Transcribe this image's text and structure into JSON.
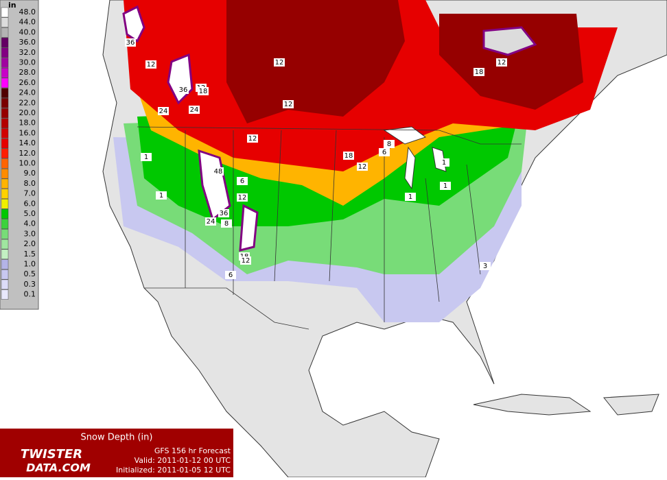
{
  "legend": {
    "unit": "in",
    "levels": [
      {
        "label": "48.0",
        "color": "#ffffff"
      },
      {
        "label": "44.0",
        "color": "#dcdcdc"
      },
      {
        "label": "40.0",
        "color": "#b4b4b4"
      },
      {
        "label": "36.0",
        "color": "#640064"
      },
      {
        "label": "32.0",
        "color": "#820082"
      },
      {
        "label": "30.0",
        "color": "#a000a0"
      },
      {
        "label": "28.0",
        "color": "#c800c8"
      },
      {
        "label": "26.0",
        "color": "#ff00ff"
      },
      {
        "label": "24.0",
        "color": "#500000"
      },
      {
        "label": "22.0",
        "color": "#7a0000"
      },
      {
        "label": "20.0",
        "color": "#960000"
      },
      {
        "label": "18.0",
        "color": "#b40000"
      },
      {
        "label": "16.0",
        "color": "#d20000"
      },
      {
        "label": "14.0",
        "color": "#e60000"
      },
      {
        "label": "12.0",
        "color": "#ff1e00"
      },
      {
        "label": "10.0",
        "color": "#ff6400"
      },
      {
        "label": "9.0",
        "color": "#ff8c00"
      },
      {
        "label": "8.0",
        "color": "#ffb400"
      },
      {
        "label": "7.0",
        "color": "#ffd200"
      },
      {
        "label": "6.0",
        "color": "#f0f000"
      },
      {
        "label": "5.0",
        "color": "#00c800"
      },
      {
        "label": "4.0",
        "color": "#3cd23c"
      },
      {
        "label": "3.0",
        "color": "#78dc78"
      },
      {
        "label": "2.0",
        "color": "#a0e6a0"
      },
      {
        "label": "1.5",
        "color": "#c3f0c3"
      },
      {
        "label": "1.0",
        "color": "#b4b4e6"
      },
      {
        "label": "0.5",
        "color": "#c8c8f0"
      },
      {
        "label": "0.3",
        "color": "#dcdcf8"
      },
      {
        "label": "0.1",
        "color": "#e8e8fc"
      }
    ]
  },
  "panel": {
    "title": "Snow Depth (in)",
    "logo_top": "TWISTER",
    "logo_bottom": "DATA.COM",
    "forecast": "GFS 156 hr Forecast",
    "valid": "Valid: 2011-01-12 00 UTC",
    "initialized": "Initialized: 2011-01-05 12 UTC"
  },
  "map_labels": [
    "36",
    "12",
    "12",
    "12",
    "12",
    "18",
    "12",
    "18",
    "12",
    "6",
    "8",
    "1",
    "1",
    "48",
    "6",
    "12",
    "36",
    "8",
    "24",
    "18",
    "12",
    "6",
    "3",
    "1",
    "1",
    "1",
    "24",
    "24",
    "36",
    "12",
    "18"
  ]
}
